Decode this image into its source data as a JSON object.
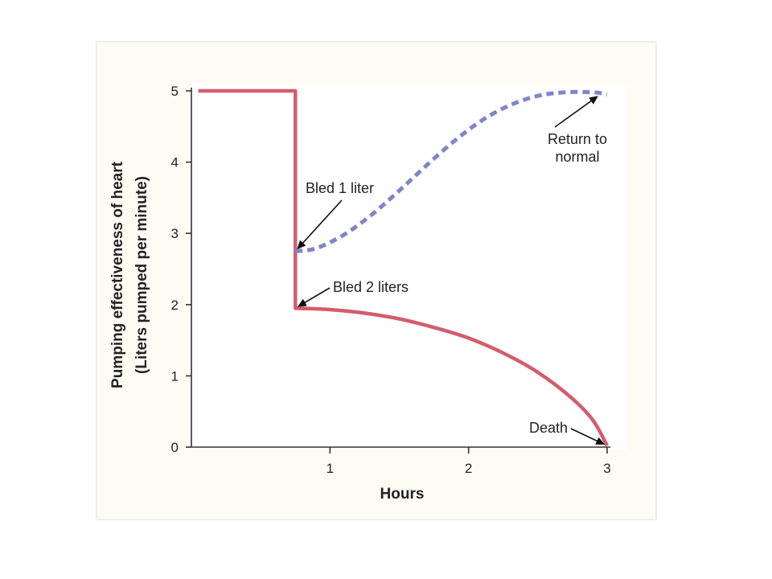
{
  "colors": {
    "panel_background": "#fcfcf4",
    "panel_border": "#efeee6",
    "axis": "#333333",
    "bleed_2_liters": "#d45d6c",
    "bleed_1_liter": "#7f86c6"
  },
  "chart_data": {
    "type": "line",
    "title": "",
    "xlabel": "Hours",
    "ylabel": "Pumping effectiveness of heart",
    "ylabel_sub": "(Liters pumped per minute)",
    "xlim": [
      0,
      3
    ],
    "ylim": [
      0,
      5
    ],
    "x_ticks": [
      1,
      2,
      3
    ],
    "y_ticks": [
      0,
      1,
      2,
      3,
      4,
      5
    ],
    "grid": false,
    "legend": "none",
    "series": [
      {
        "key": "bled-2-liters",
        "style": "solid",
        "x": [
          0.05,
          0.75,
          0.75,
          0.75,
          1.0,
          1.25,
          1.5,
          1.75,
          2.0,
          2.25,
          2.5,
          2.75,
          2.9,
          3.0
        ],
        "y": [
          5.0,
          5.0,
          2.75,
          1.95,
          1.93,
          1.88,
          1.8,
          1.68,
          1.53,
          1.32,
          1.05,
          0.68,
          0.37,
          0.02
        ]
      },
      {
        "key": "bled-1-liter",
        "style": "dashed",
        "x": [
          0.75,
          0.9,
          1.1,
          1.3,
          1.5,
          1.7,
          1.9,
          2.1,
          2.3,
          2.5,
          2.7,
          2.9,
          3.0
        ],
        "y": [
          2.75,
          2.79,
          2.98,
          3.26,
          3.6,
          3.96,
          4.3,
          4.59,
          4.8,
          4.93,
          4.98,
          4.98,
          4.95
        ]
      }
    ],
    "annotations": [
      {
        "key": "bled-1-liter",
        "lines": [
          "Bled 1 liter"
        ],
        "x": 0.75,
        "y": 2.75
      },
      {
        "key": "bled-2-liters",
        "lines": [
          "Bled 2 liters"
        ],
        "x": 0.75,
        "y": 1.95
      },
      {
        "key": "return-to-normal",
        "lines": [
          "Return to",
          "normal"
        ],
        "x": 2.95,
        "y": 4.95
      },
      {
        "key": "death",
        "lines": [
          "Death"
        ],
        "x": 3.0,
        "y": 0.02
      }
    ]
  }
}
